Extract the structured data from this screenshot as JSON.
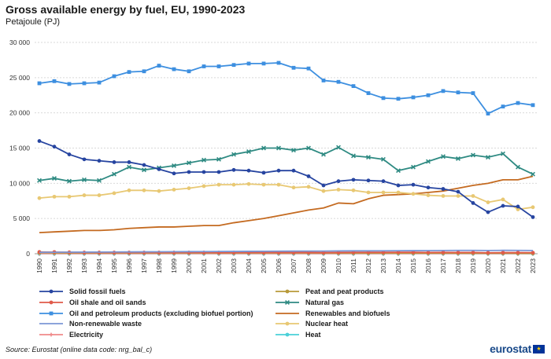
{
  "chart_data": {
    "type": "line",
    "title": "Gross available energy by fuel, EU, 1990-2023",
    "subtitle": "Petajoule (PJ)",
    "xlabel": "",
    "ylabel": "",
    "ylim": [
      0,
      30000
    ],
    "yticks": [
      0,
      5000,
      10000,
      15000,
      20000,
      25000,
      30000
    ],
    "ytick_labels": [
      "0",
      "5 000",
      "10 000",
      "15 000",
      "20 000",
      "25 000",
      "30 000"
    ],
    "grid": true,
    "legend_position": "bottom",
    "categories": [
      "1990",
      "1991",
      "1992",
      "1993",
      "1994",
      "1995",
      "1996",
      "1997",
      "1998",
      "1999",
      "2000",
      "2001",
      "2002",
      "2003",
      "2004",
      "2005",
      "2006",
      "2007",
      "2008",
      "2009",
      "2010",
      "2011",
      "2012",
      "2013",
      "2014",
      "2015",
      "2016",
      "2017",
      "2018",
      "2019",
      "2020",
      "2021",
      "2022",
      "2023"
    ],
    "series": [
      {
        "name": "Solid fossil fuels",
        "color": "#2644a0",
        "marker": "circle",
        "values": [
          16000,
          15200,
          14100,
          13400,
          13200,
          13000,
          13000,
          12600,
          12000,
          11400,
          11600,
          11600,
          11600,
          11900,
          11800,
          11500,
          11800,
          11800,
          11000,
          9700,
          10300,
          10500,
          10400,
          10300,
          9700,
          9800,
          9400,
          9200,
          8800,
          7200,
          5900,
          6800,
          6700,
          5200
        ]
      },
      {
        "name": "Peat and peat products",
        "color": "#b89a3a",
        "marker": "circle",
        "values": [
          150,
          140,
          130,
          130,
          130,
          130,
          130,
          130,
          130,
          130,
          130,
          130,
          130,
          130,
          130,
          130,
          130,
          130,
          130,
          120,
          120,
          120,
          110,
          110,
          110,
          100,
          100,
          100,
          100,
          90,
          80,
          80,
          70,
          60
        ]
      },
      {
        "name": "Oil shale and oil sands",
        "color": "#e05a4a",
        "marker": "circle",
        "values": [
          250,
          240,
          200,
          180,
          180,
          180,
          180,
          180,
          180,
          180,
          180,
          180,
          170,
          180,
          180,
          180,
          180,
          180,
          180,
          160,
          180,
          200,
          200,
          200,
          210,
          200,
          180,
          190,
          180,
          180,
          140,
          160,
          160,
          150
        ]
      },
      {
        "name": "Natural gas",
        "color": "#2e8a82",
        "marker": "x",
        "values": [
          10400,
          10700,
          10300,
          10500,
          10400,
          11300,
          12300,
          11900,
          12200,
          12500,
          12900,
          13300,
          13400,
          14100,
          14500,
          15000,
          15000,
          14700,
          15000,
          14100,
          15100,
          13900,
          13700,
          13400,
          11800,
          12300,
          13100,
          13800,
          13500,
          14000,
          13700,
          14200,
          12300,
          11300
        ]
      },
      {
        "name": "Oil and petroleum products (excluding biofuel portion)",
        "color": "#3d8fe0",
        "marker": "square",
        "values": [
          24200,
          24500,
          24100,
          24200,
          24300,
          25200,
          25800,
          25900,
          26700,
          26200,
          25900,
          26600,
          26600,
          26800,
          27000,
          27000,
          27100,
          26400,
          26300,
          24600,
          24400,
          23800,
          22800,
          22100,
          22000,
          22200,
          22500,
          23100,
          22900,
          22800,
          19900,
          20900,
          21400,
          21100
        ]
      },
      {
        "name": "Renewables and biofuels",
        "color": "#c46a20",
        "marker": "none",
        "values": [
          3000,
          3100,
          3200,
          3300,
          3300,
          3400,
          3600,
          3700,
          3800,
          3800,
          3900,
          4000,
          4000,
          4400,
          4700,
          5000,
          5400,
          5800,
          6200,
          6500,
          7200,
          7100,
          7800,
          8300,
          8400,
          8500,
          8700,
          8900,
          9300,
          9700,
          10000,
          10500,
          10500,
          11000
        ]
      },
      {
        "name": "Non-renewable waste",
        "color": "#7b97d6",
        "marker": "none",
        "values": [
          200,
          210,
          220,
          230,
          240,
          250,
          260,
          270,
          280,
          290,
          300,
          310,
          320,
          330,
          340,
          350,
          360,
          370,
          380,
          380,
          400,
          410,
          410,
          420,
          430,
          440,
          450,
          460,
          470,
          470,
          460,
          480,
          470,
          460
        ]
      },
      {
        "name": "Nuclear heat",
        "color": "#e8c873",
        "marker": "circle",
        "values": [
          7900,
          8100,
          8100,
          8300,
          8300,
          8600,
          9000,
          9000,
          8900,
          9100,
          9300,
          9600,
          9800,
          9800,
          9900,
          9800,
          9800,
          9400,
          9500,
          8900,
          9100,
          9000,
          8700,
          8700,
          8700,
          8500,
          8300,
          8200,
          8200,
          8200,
          7300,
          7700,
          6300,
          6600
        ]
      },
      {
        "name": "Electricity",
        "color": "#f08a8a",
        "marker": "plus",
        "values": [
          30,
          30,
          30,
          30,
          30,
          30,
          30,
          30,
          30,
          30,
          30,
          30,
          30,
          30,
          30,
          30,
          30,
          30,
          30,
          30,
          30,
          30,
          30,
          30,
          30,
          30,
          30,
          30,
          30,
          30,
          30,
          30,
          30,
          30
        ]
      },
      {
        "name": "Heat",
        "color": "#4ad0d8",
        "marker": "circle",
        "values": [
          10,
          10,
          10,
          10,
          10,
          10,
          10,
          10,
          10,
          10,
          10,
          10,
          10,
          10,
          10,
          10,
          10,
          10,
          10,
          10,
          10,
          10,
          10,
          10,
          10,
          10,
          10,
          10,
          10,
          10,
          10,
          10,
          10,
          10
        ]
      }
    ]
  },
  "legend": {
    "items": [
      "Solid fossil fuels",
      "Peat and peat products",
      "Oil shale and oil sands",
      "Natural gas",
      "Oil and petroleum products (excluding biofuel portion)",
      "Renewables and biofuels",
      "Non-renewable waste",
      "Nuclear heat",
      "Electricity",
      "Heat"
    ]
  },
  "footer": {
    "source": "Source: Eurostat (online data code: nrg_bal_c)",
    "logo_text": "eurostat",
    "flag_stars": "★"
  }
}
